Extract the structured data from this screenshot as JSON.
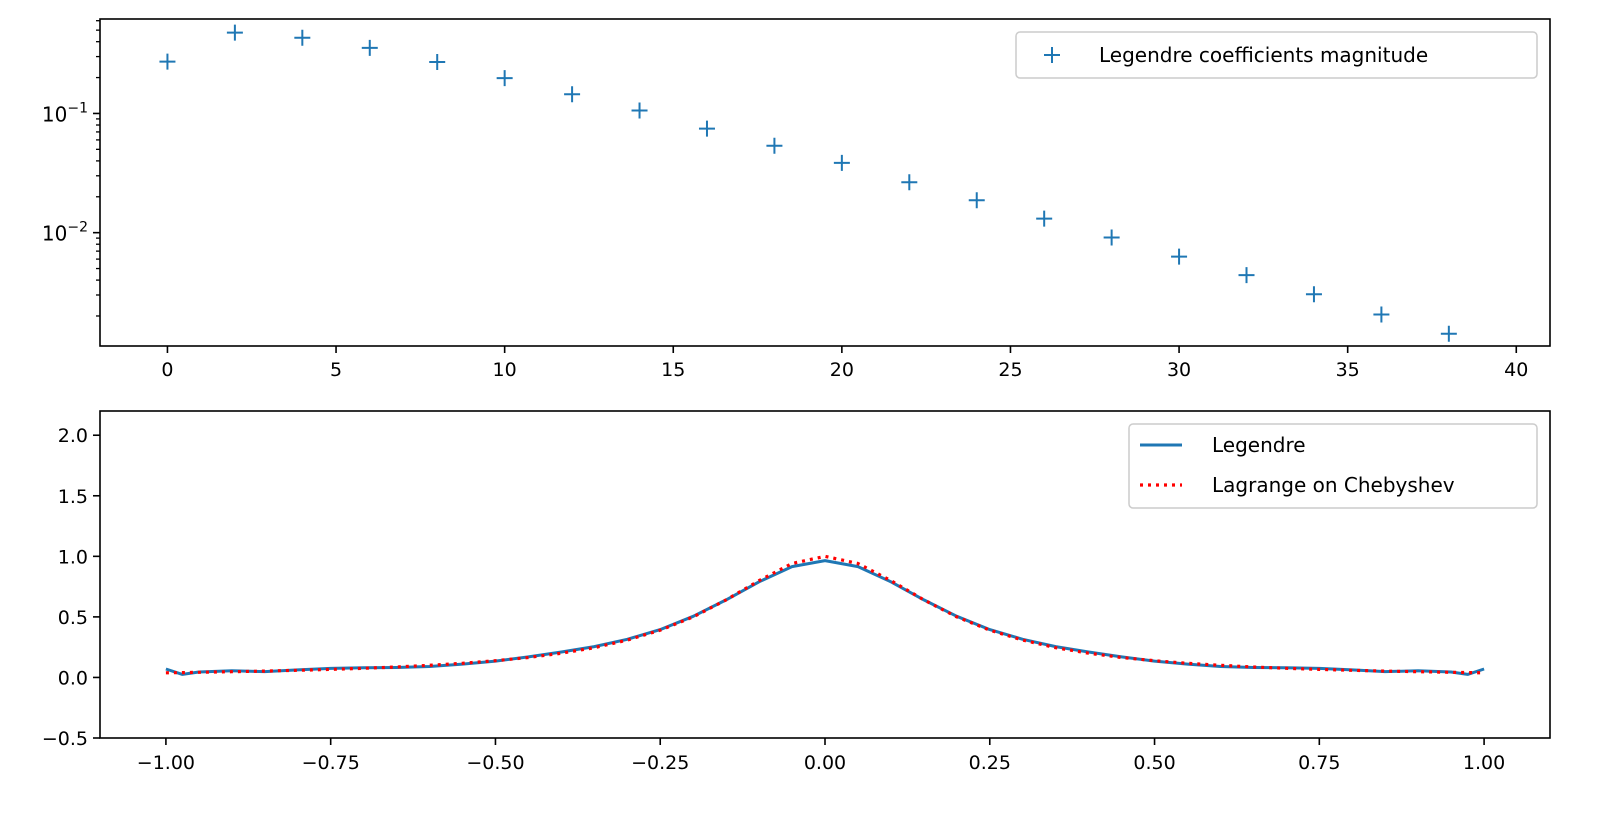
{
  "chart_data": [
    {
      "type": "scatter",
      "title": "",
      "xlabel": "",
      "ylabel": "",
      "yscale": "log",
      "xlim": [
        -2,
        41
      ],
      "ylim": [
        0.00112,
        0.62
      ],
      "grid": false,
      "legend_position": "top-right",
      "x_ticks": [
        0,
        5,
        10,
        15,
        20,
        25,
        30,
        35,
        40
      ],
      "x_tick_labels": [
        "0",
        "5",
        "10",
        "15",
        "20",
        "25",
        "30",
        "35",
        "40"
      ],
      "y_ticks": [
        0.1,
        0.01
      ],
      "y_tick_labels": [
        {
          "base": "10",
          "exp": "−1"
        },
        {
          "base": "10",
          "exp": "−2"
        }
      ],
      "series": [
        {
          "name": "Legendre coefficients magnitude",
          "marker": "+",
          "color": "#1f77b4",
          "x": [
            0,
            2,
            4,
            6,
            8,
            10,
            12,
            14,
            16,
            18,
            20,
            22,
            24,
            26,
            28,
            30,
            32,
            34,
            36,
            38
          ],
          "y": [
            0.272,
            0.477,
            0.432,
            0.355,
            0.27,
            0.198,
            0.145,
            0.106,
            0.0746,
            0.0536,
            0.0385,
            0.0265,
            0.0187,
            0.0131,
            0.0091,
            0.0063,
            0.0044,
            0.00304,
            0.00206,
            0.00142
          ]
        }
      ]
    },
    {
      "type": "line",
      "title": "",
      "xlabel": "",
      "ylabel": "",
      "xlim": [
        -1.1,
        1.1
      ],
      "ylim": [
        -0.5,
        2.2
      ],
      "grid": false,
      "legend_position": "top-right",
      "x_ticks": [
        -1,
        -0.75,
        -0.5,
        -0.25,
        0,
        0.25,
        0.5,
        0.75,
        1
      ],
      "x_tick_labels": [
        "−1.00",
        "−0.75",
        "−0.50",
        "−0.25",
        "0.00",
        "0.25",
        "0.50",
        "0.75",
        "1.00"
      ],
      "y_ticks": [
        -0.5,
        0,
        0.5,
        1,
        1.5,
        2
      ],
      "y_tick_labels": [
        "−0.5",
        "0.0",
        "0.5",
        "1.0",
        "1.5",
        "2.0"
      ],
      "x": [
        -1,
        -0.975,
        -0.95,
        -0.9,
        -0.85,
        -0.8,
        -0.75,
        -0.7,
        -0.65,
        -0.6,
        -0.55,
        -0.5,
        -0.45,
        -0.4,
        -0.35,
        -0.3,
        -0.25,
        -0.2,
        -0.15,
        -0.1,
        -0.05,
        0,
        0.05,
        0.1,
        0.15,
        0.2,
        0.25,
        0.3,
        0.35,
        0.4,
        0.45,
        0.5,
        0.55,
        0.6,
        0.65,
        0.7,
        0.75,
        0.8,
        0.85,
        0.9,
        0.95,
        0.975,
        1
      ],
      "series": [
        {
          "name": "Legendre",
          "style": "solid",
          "color": "#1f77b4",
          "y": [
            0.07,
            0.025,
            0.045,
            0.055,
            0.048,
            0.062,
            0.075,
            0.08,
            0.082,
            0.09,
            0.11,
            0.135,
            0.17,
            0.21,
            0.255,
            0.315,
            0.395,
            0.505,
            0.64,
            0.79,
            0.915,
            0.965,
            0.915,
            0.79,
            0.64,
            0.505,
            0.395,
            0.315,
            0.255,
            0.21,
            0.17,
            0.135,
            0.11,
            0.09,
            0.082,
            0.08,
            0.075,
            0.062,
            0.048,
            0.055,
            0.045,
            0.025,
            0.07
          ]
        },
        {
          "name": "Lagrange on Chebyshev",
          "style": "dotted",
          "color": "#ff0000",
          "y": [
            0.0385,
            0.0404,
            0.0424,
            0.0471,
            0.0525,
            0.0588,
            0.0664,
            0.0755,
            0.0865,
            0.1,
            0.117,
            0.138,
            0.165,
            0.2,
            0.246,
            0.308,
            0.39,
            0.5,
            0.64,
            0.8,
            0.941,
            1.0,
            0.941,
            0.8,
            0.64,
            0.5,
            0.39,
            0.308,
            0.246,
            0.2,
            0.165,
            0.138,
            0.117,
            0.1,
            0.0865,
            0.0755,
            0.0664,
            0.0588,
            0.0525,
            0.0471,
            0.0424,
            0.0404,
            0.0385
          ]
        }
      ]
    }
  ]
}
